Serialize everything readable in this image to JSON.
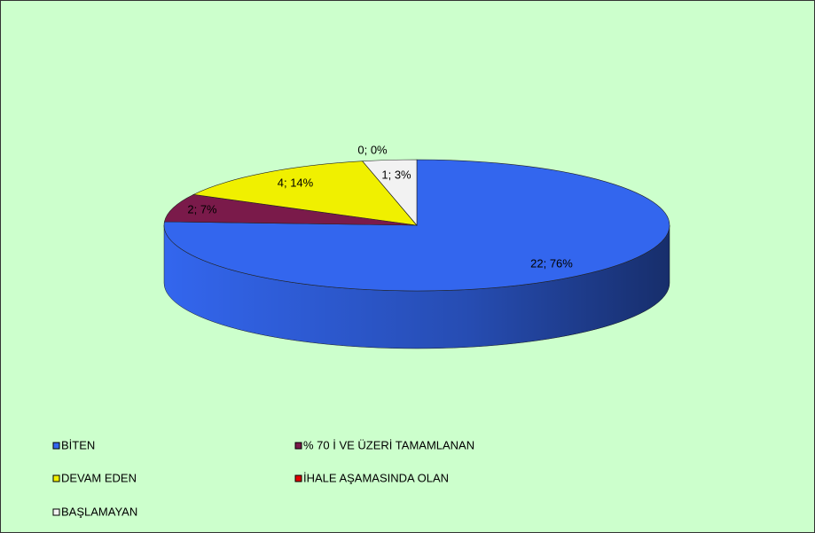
{
  "chart_data": {
    "type": "pie",
    "categories": [
      "BİTEN",
      "% 70 İ VE ÜZERİ TAMAMLANAN",
      "DEVAM EDEN",
      "İHALE AŞAMASINDA OLAN",
      "BAŞLAMAYAN"
    ],
    "values": [
      22,
      2,
      4,
      0,
      1
    ],
    "value_labels": [
      "22; 76%",
      "2; 7%",
      "4; 14%",
      "0; 0%",
      "1; 3%"
    ],
    "colors": [
      "#3366ee",
      "#7a1a4a",
      "#f0f000",
      "#e00000",
      "#f2f2f2"
    ],
    "legend": "bottom"
  }
}
